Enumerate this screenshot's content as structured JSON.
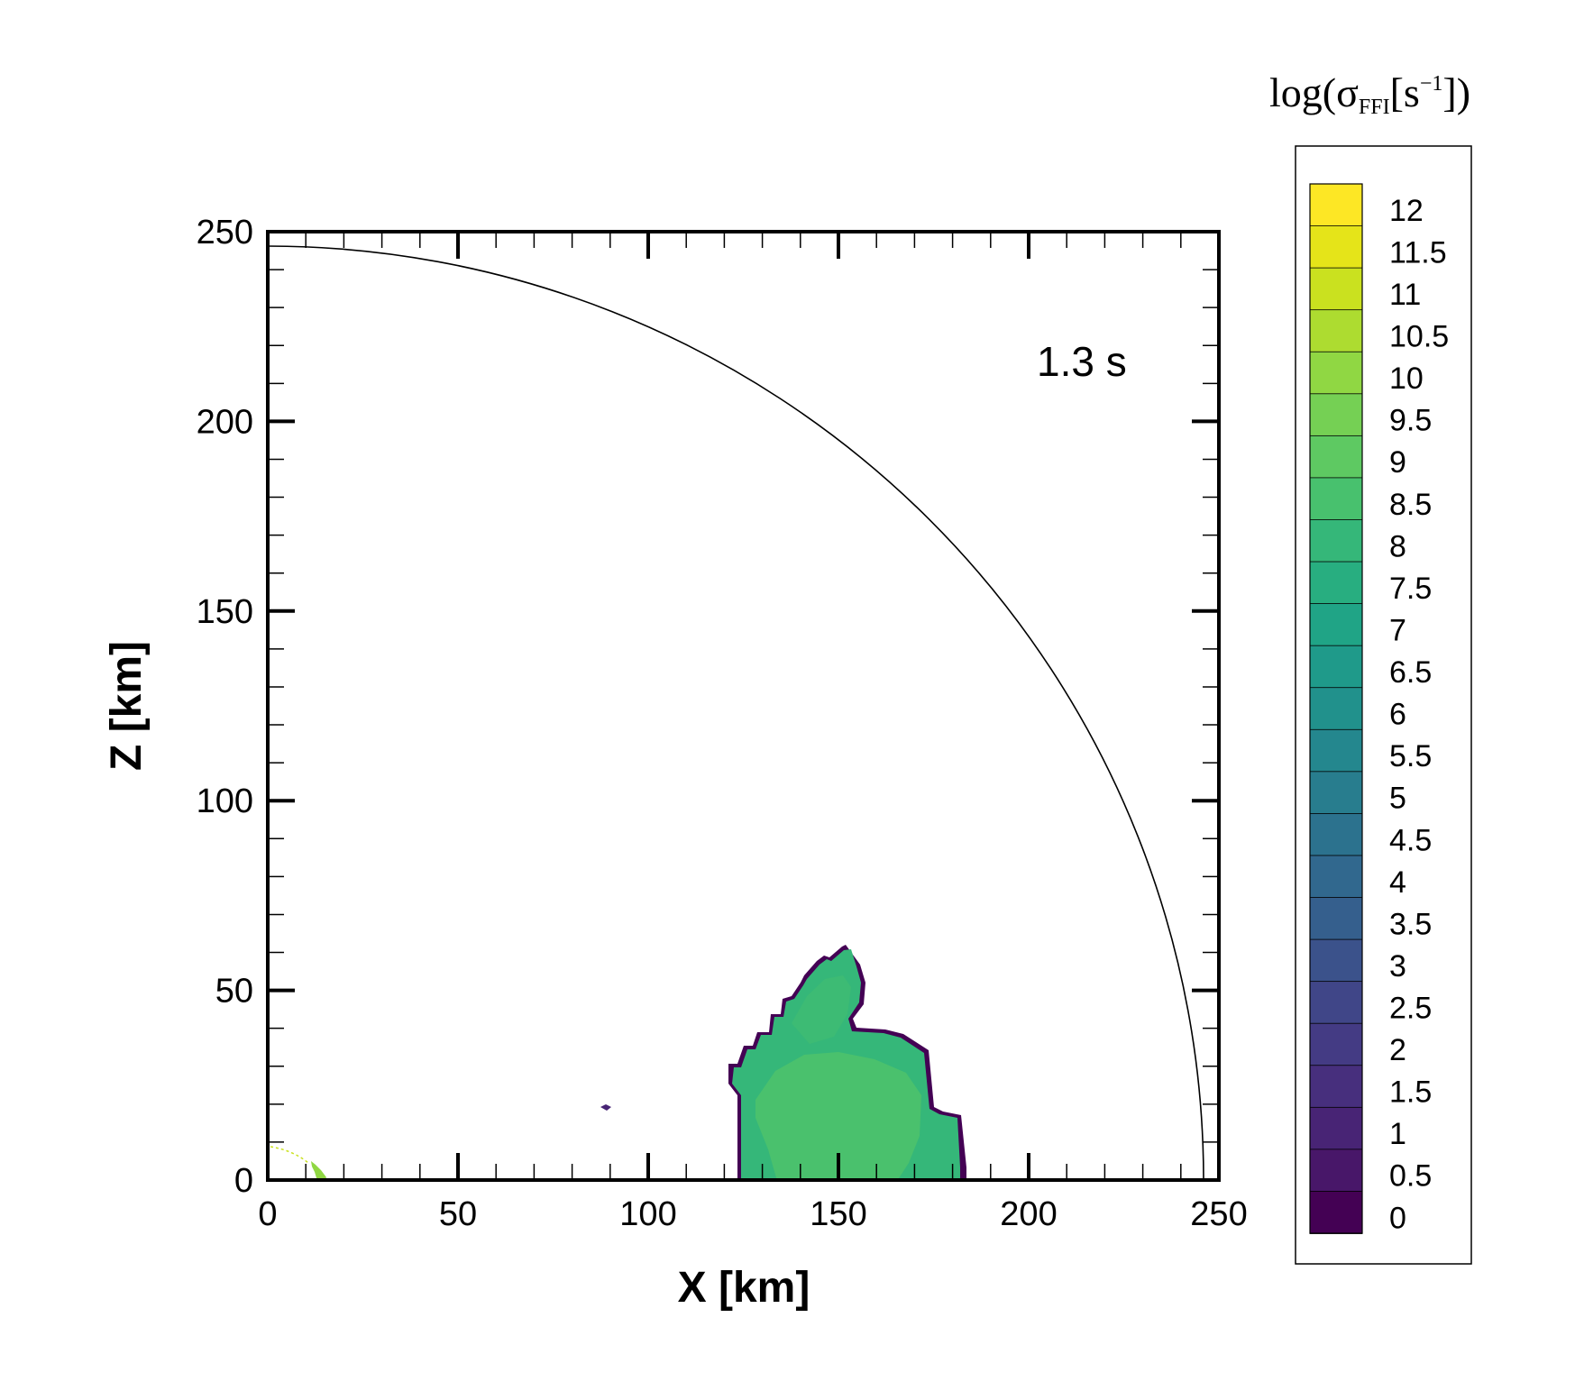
{
  "chart_data": {
    "type": "heatmap",
    "annotation": "1.3 s",
    "xlabel": "X [km]",
    "ylabel": "Z [km]",
    "xlim": [
      0,
      250
    ],
    "ylim": [
      0,
      250
    ],
    "x_ticks": [
      "0",
      "50",
      "100",
      "150",
      "200",
      "250"
    ],
    "y_ticks": [
      "0",
      "50",
      "100",
      "150",
      "200",
      "250"
    ],
    "colorbar": {
      "title_main": "log(σ",
      "title_sub": "FFI",
      "title_unit": "[s",
      "title_sup": "−1",
      "title_close": "])",
      "levels": [
        "12",
        "11.5",
        "11",
        "10.5",
        "10",
        "9.5",
        "9",
        "8.5",
        "8",
        "7.5",
        "7",
        "6.5",
        "6",
        "5.5",
        "5",
        "4.5",
        "4",
        "3.5",
        "3",
        "2.5",
        "2",
        "1.5",
        "1",
        "0.5",
        "0"
      ],
      "colors": [
        "#fde725",
        "#e5e419",
        "#cae11f",
        "#addc30",
        "#90d743",
        "#75d054",
        "#5ec962",
        "#48c16e",
        "#35b779",
        "#28ae80",
        "#20a486",
        "#1f9a8a",
        "#21918c",
        "#24878e",
        "#287d8e",
        "#2c728e",
        "#31688e",
        "#355f8d",
        "#3b528b",
        "#404688",
        "#443b84",
        "#472f7d",
        "#482475",
        "#481769",
        "#440154"
      ]
    },
    "shock_radius_km": 247,
    "regions": [
      {
        "name": "main-blob",
        "level": 8.2
      },
      {
        "name": "inner-blob",
        "level": 8.8
      },
      {
        "name": "tiny-speck",
        "level": 1.0
      },
      {
        "name": "origin-streak",
        "level": 10.2
      }
    ]
  }
}
